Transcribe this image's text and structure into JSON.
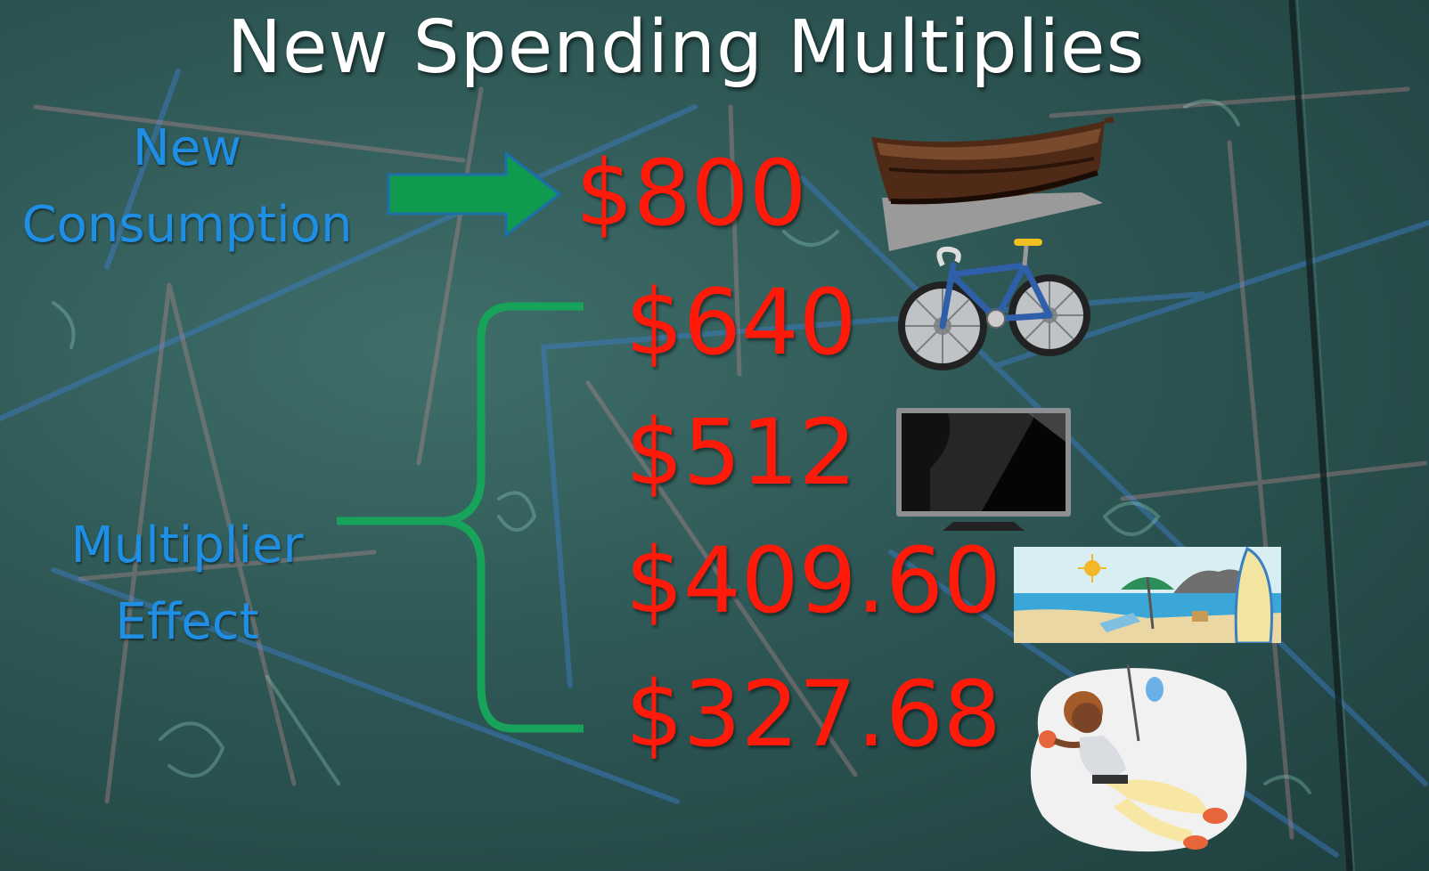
{
  "title": "New Spending Multiplies",
  "labels": {
    "new_consumption_line1": "New",
    "new_consumption_line2": "Consumption",
    "multiplier_line1": "Multiplier",
    "multiplier_line2": "Effect"
  },
  "amounts": [
    "$800",
    "$640",
    "$512",
    "$409.60",
    "$327.68"
  ],
  "icons": [
    "boat-icon",
    "bicycle-icon",
    "television-icon",
    "beach-icon",
    "climber-icon"
  ],
  "colors": {
    "background": "#2d5654",
    "title": "#ffffff",
    "labels": "#1f8fe6",
    "amounts": "#ff1a0a",
    "arrow": "#0f9a50",
    "brace": "#17a35a"
  }
}
